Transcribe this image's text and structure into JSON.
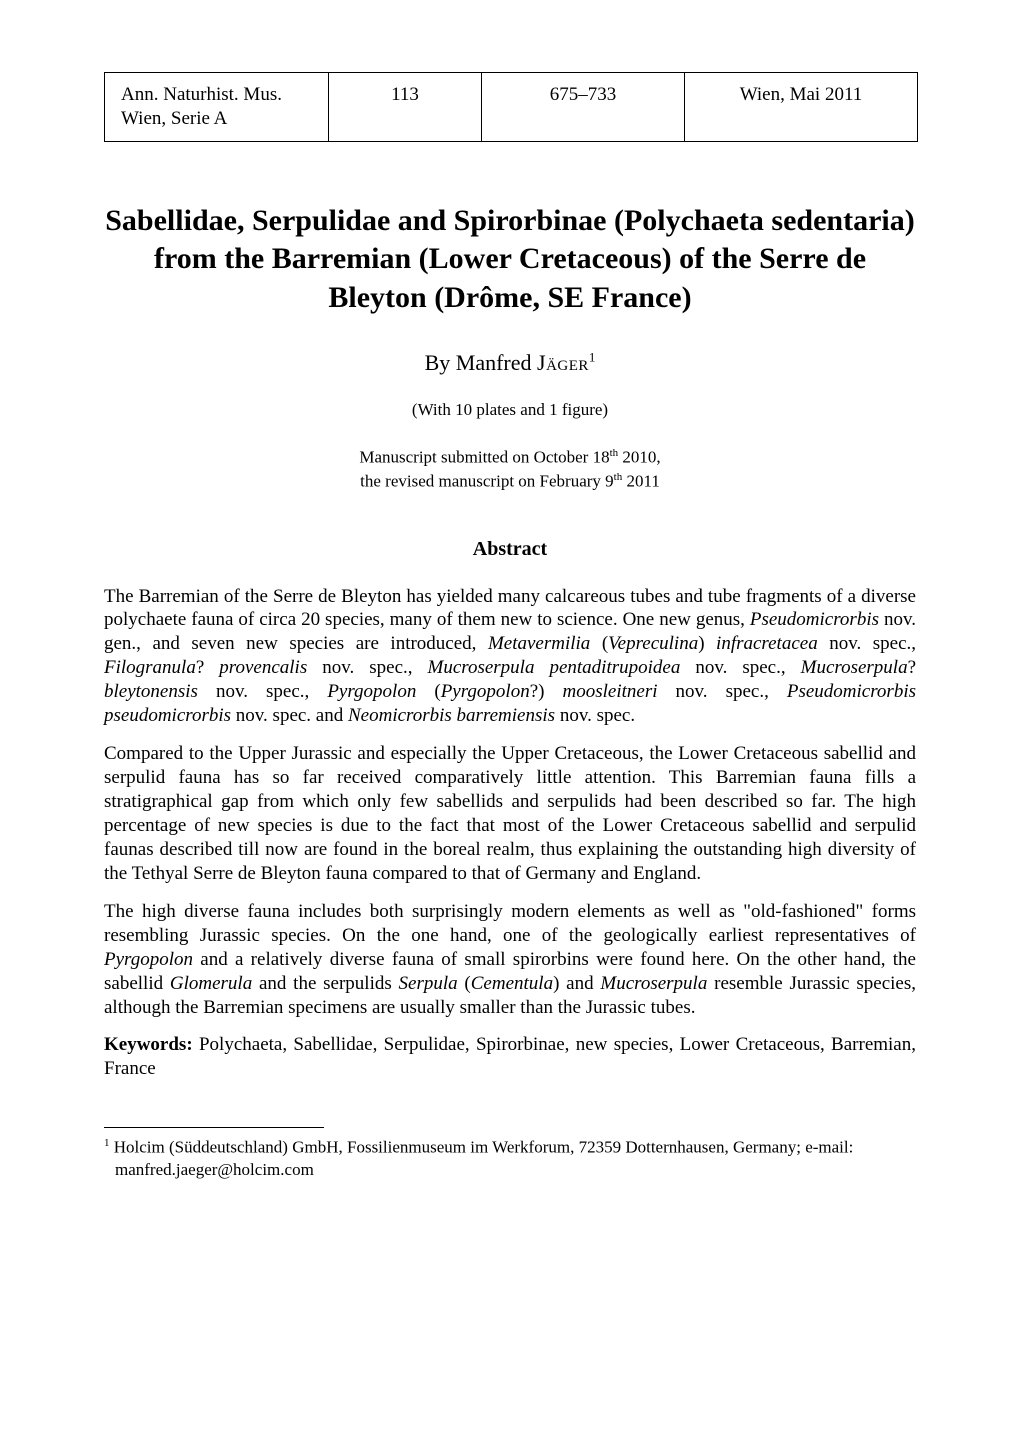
{
  "header": {
    "journal": "Ann. Naturhist. Mus. Wien, Serie A",
    "volume": "113",
    "pages": "675–733",
    "date": "Wien, Mai 2011"
  },
  "title": "Sabellidae, Serpulidae and Spirorbinae (Polychaeta sedentaria) from the Barremian (Lower Cretaceous) of the Serre de Bleyton (Drôme, SE France)",
  "author": {
    "by": "By ",
    "first": "Manfred",
    "surname": "Jäger",
    "affil_mark": "1"
  },
  "plates_note": "(With 10 plates and 1 figure)",
  "submission": {
    "line1_pre": "Manuscript submitted on October 18",
    "line1_sup": "th",
    "line1_post": " 2010,",
    "line2_pre": "the revised manuscript on February 9",
    "line2_sup": "th",
    "line2_post": " 2011"
  },
  "abstract_heading": "Abstract",
  "abstract": {
    "p1_html": "The Barremian of the Serre de Bleyton has yielded many calcareous tubes and tube fragments of a diverse polychaete fauna of circa 20 species, many of them new to science. One new genus, <i>Pseudomicrorbis</i> nov. gen., and seven new species are introduced, <i>Metavermilia</i> (<i>Vepreculina</i>) <i>infracretacea</i> nov. spec., <i>Filogranula</i>? <i>provencalis</i> nov. spec., <i>Mucroserpula pentaditrupoidea</i> nov. spec., <i>Mucroserpula</i>? <i>bleytonensis</i> nov. spec., <i>Pyrgopolon</i> (<i>Pyrgopolon</i>?) <i>moosleitneri</i> nov. spec., <i>Pseudomicrorbis pseudomicrorbis</i> nov. spec. and <i>Neomicrorbis barremiensis</i> nov. spec.",
    "p2_html": "Compared to the Upper Jurassic and especially the Upper Cretaceous, the Lower Cretaceous sabellid and serpulid fauna has so far received comparatively little attention. This Barremian fauna fills a stratigraphical gap from which only few sabellids and serpulids had been described so far. The high percentage of new species is due to the fact that most of the Lower Cretaceous sabellid and serpulid faunas described till now are found in the boreal realm, thus explaining the outstanding high diversity of the Tethyal Serre de Bleyton fauna compared to that of Germany and England.",
    "p3_html": "The high diverse fauna includes both surprisingly modern elements as well as \"old-fashioned\" forms resembling Jurassic species. On the one hand, one of the geologically earliest representatives of <i>Pyrgopolon</i> and a relatively diverse fauna of small spirorbins were found here. On the other hand, the sabellid <i>Glomerula</i> and the serpulids <i>Serpula</i> (<i>Cementula</i>) and <i>Mucroserpula</i> resemble Jurassic species, although the Barremian specimens are usually smaller than the Jurassic tubes."
  },
  "keywords": {
    "label": "Keywords:",
    "text": " Polychaeta, Sabellidae, Serpulidae, Spirorbinae, new species, Lower Cretaceous, Barremian, France"
  },
  "footnote": {
    "mark": "1",
    "text": " Holcim (Süddeutschland) GmbH, Fossilienmuseum im Werkforum, 72359 Dotternhausen, Germany; e-mail: manfred.jaeger@holcim.com"
  }
}
